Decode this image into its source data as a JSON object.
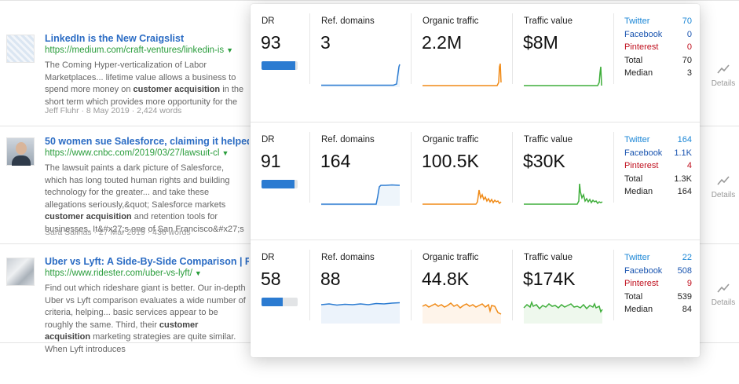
{
  "results": [
    {
      "title": "LinkedIn is the New Craigslist",
      "url": "https://medium.com/craft-ventures/linkedin-is",
      "snippet_html": "The Coming Hyper-verticalization of Labor Marketplaces... lifetime value allows a business to spend more money on <b>customer acquisition</b> in the short term which provides more opportunity for the",
      "meta": "Jeff Fluhr · 8 May 2019 · 2,424 words",
      "details_label": "Details"
    },
    {
      "title": "50 women sue Salesforce, claiming it helped",
      "url": "https://www.cnbc.com/2019/03/27/lawsuit-cl",
      "snippet_html": "The lawsuit paints a dark picture of Salesforce, which has long touted human rights and building technology for the greater... and take these allegations seriously,&amp;quot; Salesforce markets <b>customer acquisition</b> and retention tools for businesses. It&amp;#x27;s one of San Francisco&amp;#x27;s",
      "meta": "Sara Salinas · 27 Mar 2019 · 436 words",
      "details_label": "Details"
    },
    {
      "title": "Uber vs Lyft: A Side-By-Side Comparison | Ri",
      "url": "https://www.ridester.com/uber-vs-lyft/",
      "snippet_html": "Find out which rideshare giant is better. Our in-depth Uber vs Lyft comparison evaluates a wide number of criteria, helping... basic services appear to be roughly the same. Third, their <b>customer acquisition</b> marketing strategies are quite similar. When Lyft introduces",
      "meta": "",
      "details_label": "Details"
    }
  ],
  "metric_labels": {
    "dr": "DR",
    "ref_domains": "Ref. domains",
    "organic_traffic": "Organic traffic",
    "traffic_value": "Traffic value"
  },
  "metrics": [
    {
      "dr": "93",
      "dr_fraction": 0.93,
      "ref_domains": "3",
      "organic_traffic": "2.2M",
      "traffic_value": "$8M",
      "social": [
        {
          "name": "Twitter",
          "value": "70",
          "kind": "tw"
        },
        {
          "name": "Facebook",
          "value": "0",
          "kind": "fb"
        },
        {
          "name": "Pinterest",
          "value": "0",
          "kind": "pi"
        },
        {
          "name": "Total",
          "value": "70",
          "kind": "plain"
        },
        {
          "name": "Median",
          "value": "3",
          "kind": "plain"
        }
      ]
    },
    {
      "dr": "91",
      "dr_fraction": 0.91,
      "ref_domains": "164",
      "organic_traffic": "100.5K",
      "traffic_value": "$30K",
      "social": [
        {
          "name": "Twitter",
          "value": "164",
          "kind": "tw"
        },
        {
          "name": "Facebook",
          "value": "1.1K",
          "kind": "fb"
        },
        {
          "name": "Pinterest",
          "value": "4",
          "kind": "pi"
        },
        {
          "name": "Total",
          "value": "1.3K",
          "kind": "plain"
        },
        {
          "name": "Median",
          "value": "164",
          "kind": "plain"
        }
      ]
    },
    {
      "dr": "58",
      "dr_fraction": 0.58,
      "ref_domains": "88",
      "organic_traffic": "44.8K",
      "traffic_value": "$174K",
      "social": [
        {
          "name": "Twitter",
          "value": "22",
          "kind": "tw"
        },
        {
          "name": "Facebook",
          "value": "508",
          "kind": "fb"
        },
        {
          "name": "Pinterest",
          "value": "9",
          "kind": "pi"
        },
        {
          "name": "Total",
          "value": "539",
          "kind": "plain"
        },
        {
          "name": "Median",
          "value": "84",
          "kind": "plain"
        }
      ]
    }
  ],
  "colors": {
    "ref_domains_line": "#2b7bd1",
    "organic_traffic_line": "#f08a16",
    "traffic_value_line": "#3fae3b",
    "dr_bar": "#2b7bd1"
  }
}
